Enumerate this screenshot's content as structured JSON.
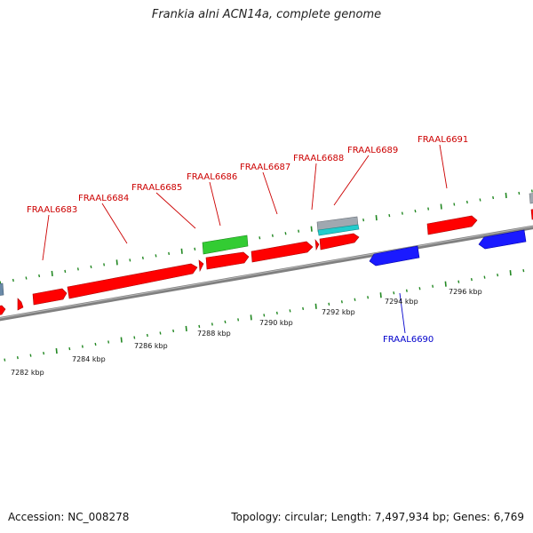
{
  "title": "Frankia alni ACN14a, complete genome",
  "footer": {
    "accession": "Accession: NC_008278",
    "summary": "Topology: circular; Length: 7,497,934 bp; Genes: 6,769"
  },
  "colors": {
    "forward_gene": "#ff0000",
    "reverse_gene": "#1a1aff",
    "rna_gene": "#33cc33",
    "misc_gray": "#a0a8b0",
    "misc_cyan": "#22cccc",
    "backbone": "#808080",
    "tick": "#228822",
    "forward_label": "#cc0000",
    "reverse_label": "#0000cc"
  },
  "scale": {
    "labels": [
      {
        "text": "7282 kbp",
        "kbp": 7282
      },
      {
        "text": "7284 kbp",
        "kbp": 7284
      },
      {
        "text": "7286 kbp",
        "kbp": 7286
      },
      {
        "text": "7288 kbp",
        "kbp": 7288
      },
      {
        "text": "7290 kbp",
        "kbp": 7290
      },
      {
        "text": "7292 kbp",
        "kbp": 7292
      },
      {
        "text": "7294 kbp",
        "kbp": 7294
      },
      {
        "text": "7296 kbp",
        "kbp": 7296
      }
    ]
  },
  "gene_labels": [
    {
      "text": "FRAAL6683",
      "strand": "forward"
    },
    {
      "text": "FRAAL6684",
      "strand": "forward"
    },
    {
      "text": "FRAAL6685",
      "strand": "forward"
    },
    {
      "text": "FRAAL6686",
      "strand": "forward"
    },
    {
      "text": "FRAAL6687",
      "strand": "forward"
    },
    {
      "text": "FRAAL6688",
      "strand": "forward"
    },
    {
      "text": "FRAAL6689",
      "strand": "forward"
    },
    {
      "text": "FRAAL6691",
      "strand": "forward"
    },
    {
      "text": "FRAAL6690",
      "strand": "reverse"
    }
  ]
}
